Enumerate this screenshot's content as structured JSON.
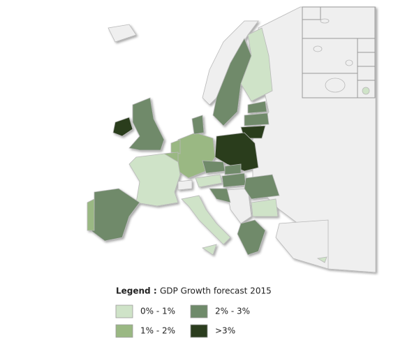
{
  "legend": {
    "label": "Legend :",
    "title": "GDP Growth forecast 2015",
    "entries": [
      {
        "label": "0% - 1%",
        "color": "#cfe3c8"
      },
      {
        "label": "1% - 2%",
        "color": "#9ab883"
      },
      {
        "label": "2% - 3%",
        "color": "#6f8a6a"
      },
      {
        "label": ">3%",
        "color": "#2b3d1e"
      }
    ]
  }
}
